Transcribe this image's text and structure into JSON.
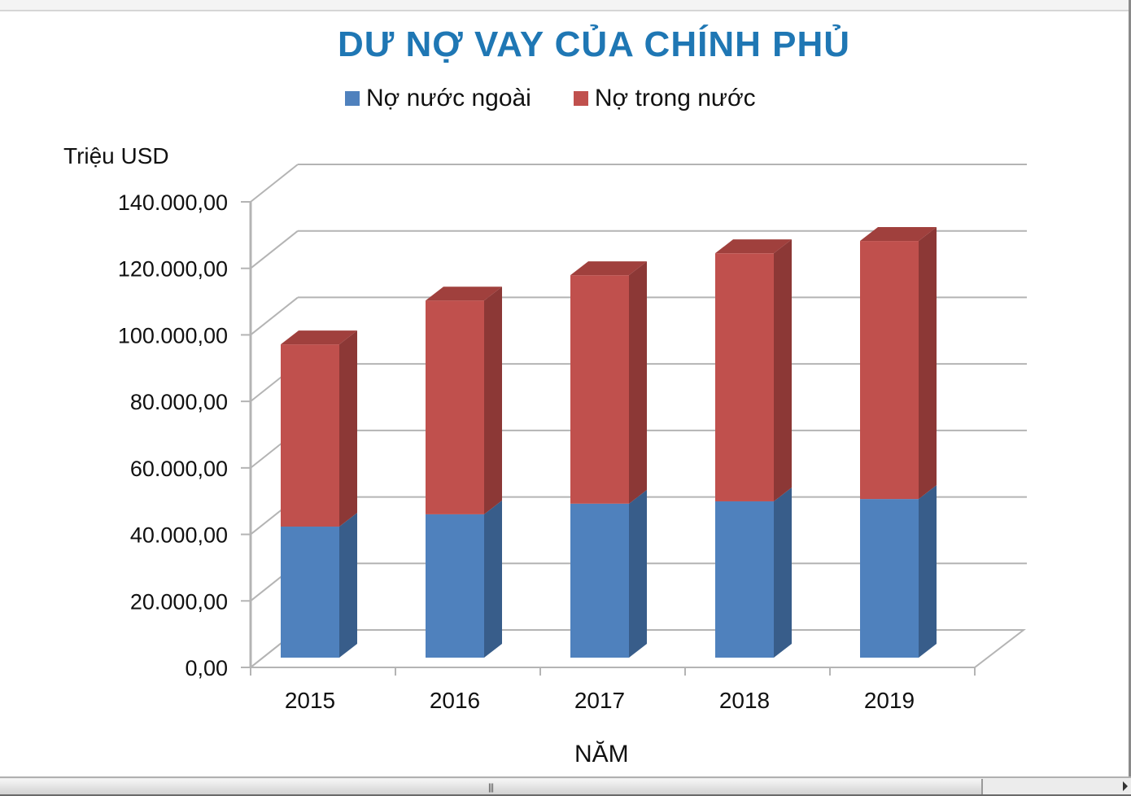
{
  "chart_data": {
    "type": "bar",
    "stacked": true,
    "three_d": true,
    "title": "DƯ NỢ VAY CỦA CHÍNH PHỦ",
    "xlabel": "NĂM",
    "ylabel": "Triệu USD",
    "categories": [
      "2015",
      "2016",
      "2017",
      "2018",
      "2019"
    ],
    "series": [
      {
        "name": "Nợ nước ngoài",
        "color": "#4f81bd",
        "values": [
          39400,
          43100,
          46300,
          47000,
          47700
        ]
      },
      {
        "name": "Nợ trong nước",
        "color": "#c0504d",
        "values": [
          54800,
          64300,
          68700,
          74600,
          77600
        ]
      }
    ],
    "totals": [
      94200,
      107400,
      115000,
      121600,
      125300
    ],
    "ylim": [
      0,
      140000
    ],
    "yticks": [
      "0,00",
      "20.000,00",
      "40.000,00",
      "60.000,00",
      "80.000,00",
      "100.000,00",
      "120.000,00",
      "140.000,00"
    ],
    "grid": true,
    "legend_position": "top"
  },
  "chart": {
    "title": "DƯ NỢ VAY CỦA CHÍNH PHỦ",
    "legend": [
      {
        "label": "Nợ nước ngoài",
        "color": "#4f81bd"
      },
      {
        "label": "Nợ trong nước",
        "color": "#c0504d"
      }
    ],
    "y_unit": "Triệu USD",
    "x_title": "NĂM"
  },
  "scrollbar": {
    "grip": "|||"
  }
}
